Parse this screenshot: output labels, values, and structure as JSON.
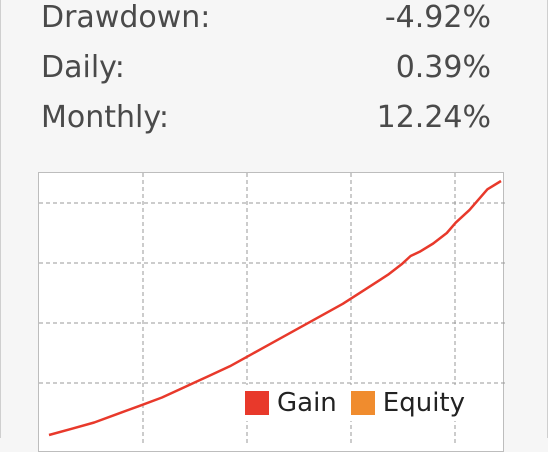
{
  "stats": [
    {
      "label": "Drawdown:",
      "value": "-4.92%"
    },
    {
      "label": "Daily:",
      "value": "0.39%"
    },
    {
      "label": "Monthly:",
      "value": "12.24%"
    }
  ],
  "legend": {
    "gain": {
      "label": "Gain",
      "color": "#e8392b"
    },
    "equity": {
      "label": "Equity",
      "color": "#f08c2e"
    }
  },
  "chart_data": {
    "type": "line",
    "grid": true,
    "legend_position": "bottom-right",
    "series": [
      {
        "name": "Gain",
        "color": "#e8392b",
        "x": [
          0,
          5,
          10,
          15,
          20,
          25,
          30,
          35,
          40,
          45,
          50,
          55,
          60,
          65,
          70,
          75,
          78,
          80,
          82,
          85,
          88,
          90,
          93,
          95,
          97,
          100
        ],
        "y": [
          0,
          3,
          6,
          10,
          14,
          18,
          23,
          28,
          33,
          39,
          45,
          51,
          57,
          63,
          70,
          77,
          82,
          86,
          88,
          92,
          97,
          102,
          108,
          113,
          118,
          122
        ]
      }
    ]
  }
}
